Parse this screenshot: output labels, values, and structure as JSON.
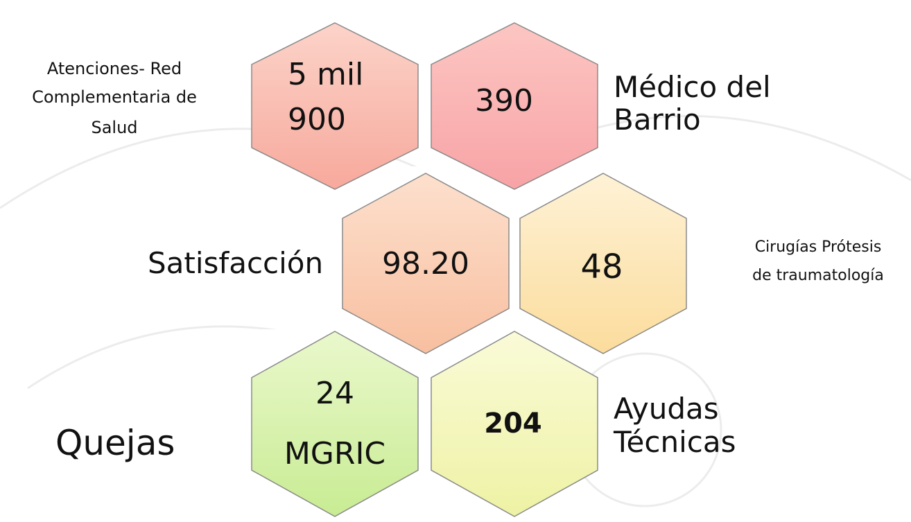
{
  "nodes": [
    {
      "value_lines": [
        "5 mil",
        "900"
      ],
      "label_lines": [
        "Atenciones- Red",
        "Complementaria de",
        "Salud"
      ]
    },
    {
      "value_lines": [
        "390"
      ],
      "label_lines": [
        "Médico del",
        "Barrio"
      ]
    },
    {
      "value_lines": [
        "98.20"
      ],
      "label_lines": [
        "Satisfacción"
      ]
    },
    {
      "value_lines": [
        "48"
      ],
      "label_lines": [
        "Cirugías Prótesis",
        "de traumatología"
      ]
    },
    {
      "value_lines": [
        "24",
        "MGRIC"
      ],
      "label_lines": [
        "Quejas"
      ]
    },
    {
      "value_lines": [
        "204"
      ],
      "label_lines": [
        "Ayudas",
        "Técnicas"
      ]
    }
  ]
}
